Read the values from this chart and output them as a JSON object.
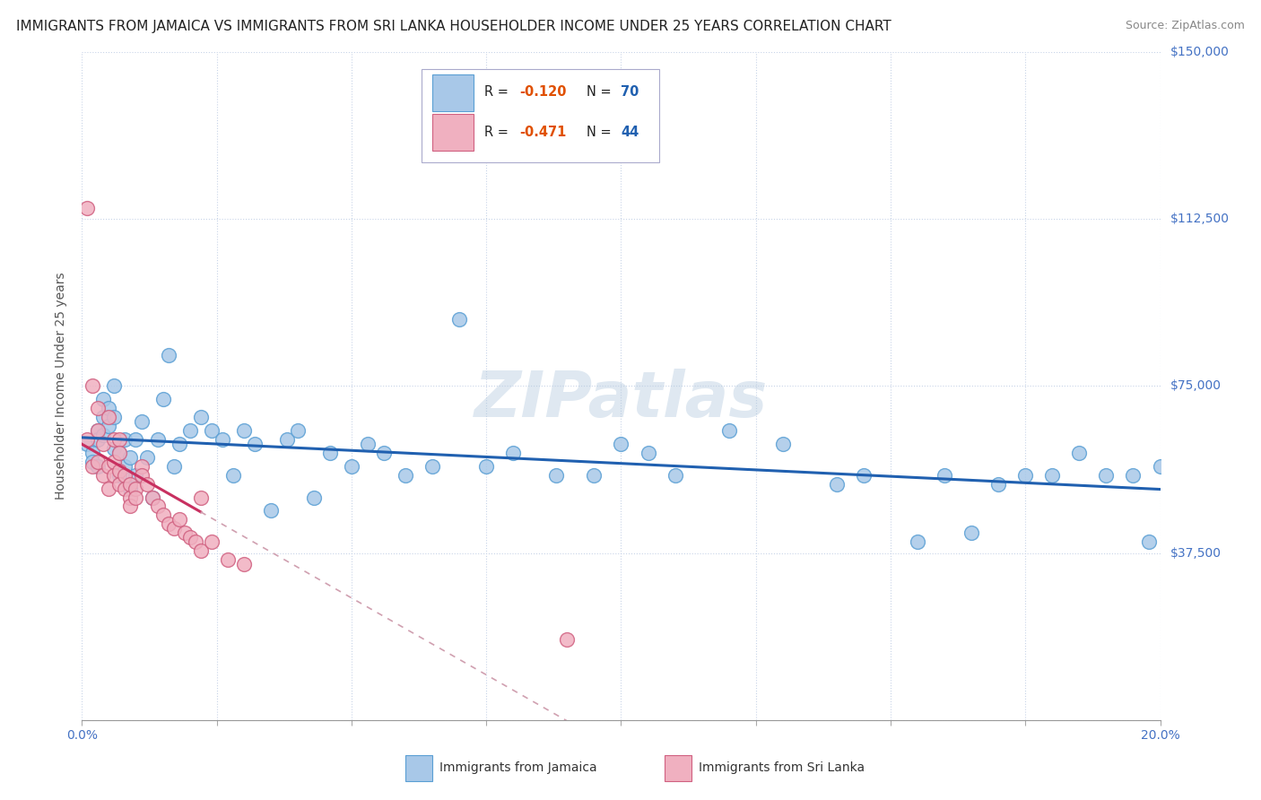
{
  "title": "IMMIGRANTS FROM JAMAICA VS IMMIGRANTS FROM SRI LANKA HOUSEHOLDER INCOME UNDER 25 YEARS CORRELATION CHART",
  "source": "Source: ZipAtlas.com",
  "ylabel": "Householder Income Under 25 years",
  "xlim": [
    0.0,
    0.2
  ],
  "ylim": [
    0,
    150000
  ],
  "yticks": [
    0,
    37500,
    75000,
    112500,
    150000
  ],
  "xticks": [
    0.0,
    0.025,
    0.05,
    0.075,
    0.1,
    0.125,
    0.15,
    0.175,
    0.2
  ],
  "ytick_labels_right": [
    "$37,500",
    "$75,000",
    "$112,500",
    "$150,000"
  ],
  "ytick_vals_right": [
    37500,
    75000,
    112500,
    150000
  ],
  "jamaica_color": "#a8c8e8",
  "jamaica_edge_color": "#5a9fd4",
  "srilanka_color": "#f0b0c0",
  "srilanka_edge_color": "#d06080",
  "jamaica_line_color": "#2060b0",
  "srilanka_line_color": "#c83060",
  "srilanka_dash_color": "#d0a0b0",
  "watermark": "ZIPatlas",
  "r_color": "#e05000",
  "n_color": "#2060b0",
  "background_color": "#ffffff",
  "grid_color": "#c8d4e8",
  "title_fontsize": 11,
  "tick_fontsize": 10,
  "jamaica_x": [
    0.001,
    0.002,
    0.002,
    0.003,
    0.003,
    0.003,
    0.004,
    0.004,
    0.004,
    0.005,
    0.005,
    0.006,
    0.006,
    0.006,
    0.007,
    0.007,
    0.008,
    0.008,
    0.009,
    0.009,
    0.01,
    0.01,
    0.011,
    0.012,
    0.013,
    0.014,
    0.015,
    0.016,
    0.017,
    0.018,
    0.02,
    0.022,
    0.024,
    0.026,
    0.028,
    0.03,
    0.032,
    0.035,
    0.038,
    0.04,
    0.043,
    0.046,
    0.05,
    0.053,
    0.056,
    0.06,
    0.065,
    0.07,
    0.075,
    0.08,
    0.088,
    0.095,
    0.1,
    0.105,
    0.11,
    0.12,
    0.13,
    0.14,
    0.155,
    0.165,
    0.17,
    0.175,
    0.18,
    0.185,
    0.19,
    0.195,
    0.198,
    0.2,
    0.145,
    0.16
  ],
  "jamaica_y": [
    62000,
    60000,
    58000,
    65000,
    63000,
    57000,
    68000,
    72000,
    64000,
    70000,
    66000,
    61000,
    75000,
    68000,
    55000,
    60000,
    63000,
    57000,
    52000,
    59000,
    63000,
    55000,
    67000,
    59000,
    50000,
    63000,
    72000,
    82000,
    57000,
    62000,
    65000,
    68000,
    65000,
    63000,
    55000,
    65000,
    62000,
    47000,
    63000,
    65000,
    50000,
    60000,
    57000,
    62000,
    60000,
    55000,
    57000,
    90000,
    57000,
    60000,
    55000,
    55000,
    62000,
    60000,
    55000,
    65000,
    62000,
    53000,
    40000,
    42000,
    53000,
    55000,
    55000,
    60000,
    55000,
    55000,
    40000,
    57000,
    55000,
    55000
  ],
  "srilanka_x": [
    0.001,
    0.001,
    0.002,
    0.002,
    0.003,
    0.003,
    0.003,
    0.004,
    0.004,
    0.005,
    0.005,
    0.005,
    0.006,
    0.006,
    0.006,
    0.007,
    0.007,
    0.007,
    0.007,
    0.008,
    0.008,
    0.009,
    0.009,
    0.009,
    0.01,
    0.01,
    0.011,
    0.011,
    0.012,
    0.013,
    0.014,
    0.015,
    0.016,
    0.017,
    0.018,
    0.019,
    0.02,
    0.021,
    0.022,
    0.024,
    0.027,
    0.03,
    0.09,
    0.022
  ],
  "srilanka_y": [
    115000,
    63000,
    75000,
    57000,
    70000,
    65000,
    58000,
    62000,
    55000,
    68000,
    57000,
    52000,
    63000,
    58000,
    55000,
    63000,
    60000,
    56000,
    53000,
    55000,
    52000,
    53000,
    50000,
    48000,
    52000,
    50000,
    57000,
    55000,
    53000,
    50000,
    48000,
    46000,
    44000,
    43000,
    45000,
    42000,
    41000,
    40000,
    38000,
    40000,
    36000,
    35000,
    18000,
    50000
  ]
}
